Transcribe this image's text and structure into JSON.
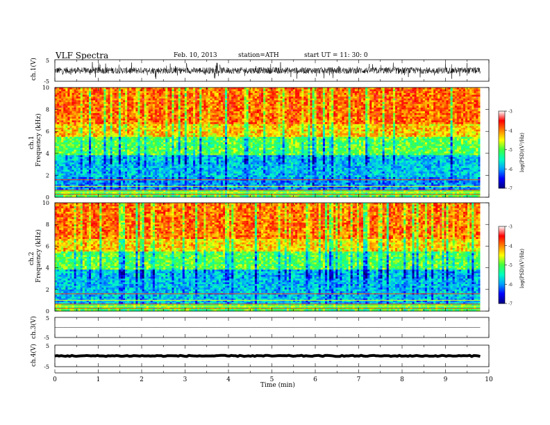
{
  "header": {
    "title": "VLF  Spectra",
    "date": "Feb. 10, 2013",
    "station": "station=ATH",
    "start": "start  UT  =    11: 30: 0"
  },
  "chart_data": [
    {
      "type": "line",
      "panel": "ch1-waveform",
      "ylabel": "ch.1(V)",
      "ylim": [
        -5,
        5
      ],
      "y_ticks": [
        "5",
        "-5"
      ],
      "x_range_min": [
        0,
        9.8
      ],
      "trace": "dense noise, amplitude about -2 to 2 V with spikes to about ±4 V"
    },
    {
      "type": "heatmap",
      "panel": "ch1-spectrogram",
      "ylabel_top": "ch.1",
      "ylabel": "Frequency  (kHz)",
      "ylim": [
        0,
        10
      ],
      "y_ticks": [
        "0",
        "2",
        "4",
        "6",
        "8",
        "10"
      ],
      "colorbar_label": "log(PSD)(V²/Hz)",
      "colorbar_range": [
        -7,
        -3
      ],
      "colorbar_ticks": [
        "-3",
        "-4",
        "-5",
        "-6",
        "-7"
      ],
      "colormap": [
        "#000080",
        "#0000ff",
        "#00a0ff",
        "#00ffc0",
        "#40ff40",
        "#ffff00",
        "#ff8000",
        "#ff0000",
        "#ffffff"
      ],
      "frequency_profile_kHz": [
        {
          "band": [
            0,
            0.7
          ],
          "logPSD": -5.0
        },
        {
          "band": [
            0.7,
            1.9
          ],
          "logPSD": -6.0
        },
        {
          "band": [
            1.9,
            3.8
          ],
          "logPSD": -5.8
        },
        {
          "band": [
            3.8,
            5.5
          ],
          "logPSD": -5.0
        },
        {
          "band": [
            5.5,
            6.6
          ],
          "logPSD": -4.3
        },
        {
          "band": [
            6.6,
            10
          ],
          "logPSD": -3.9
        }
      ]
    },
    {
      "type": "heatmap",
      "panel": "ch2-spectrogram",
      "ylabel_top": "ch.2",
      "ylabel": "Frequency  (kHz)",
      "ylim": [
        0,
        10
      ],
      "y_ticks": [
        "0",
        "2",
        "4",
        "6",
        "8",
        "10"
      ],
      "colorbar_label": "log(PSD)(V²/Hz)",
      "colorbar_range": [
        -7,
        -3
      ],
      "colorbar_ticks": [
        "-3",
        "-4",
        "-5",
        "-6",
        "-7"
      ],
      "frequency_profile_kHz": [
        {
          "band": [
            0,
            0.7
          ],
          "logPSD": -5.0
        },
        {
          "band": [
            0.7,
            1.9
          ],
          "logPSD": -5.8
        },
        {
          "band": [
            1.9,
            3.8
          ],
          "logPSD": -5.8
        },
        {
          "band": [
            3.8,
            5.5
          ],
          "logPSD": -5.0
        },
        {
          "band": [
            5.5,
            6.6
          ],
          "logPSD": -4.3
        },
        {
          "band": [
            6.6,
            10
          ],
          "logPSD": -3.9
        }
      ]
    },
    {
      "type": "line",
      "panel": "ch3-waveform",
      "ylabel": "ch.3(V)",
      "ylim": [
        -5,
        5
      ],
      "y_ticks": [
        "5",
        "-5"
      ],
      "trace": "flat near 0 V"
    },
    {
      "type": "line",
      "panel": "ch4-waveform",
      "ylabel": "ch.4(V)",
      "ylim": [
        -5,
        5
      ],
      "y_ticks": [
        "5",
        "-5"
      ],
      "trace": "thick flat band near 0 V"
    }
  ],
  "xaxis": {
    "label": "Time  (min)",
    "range": [
      0,
      10
    ],
    "ticks": [
      "0",
      "1",
      "2",
      "3",
      "4",
      "5",
      "6",
      "7",
      "8",
      "9",
      "10"
    ]
  }
}
